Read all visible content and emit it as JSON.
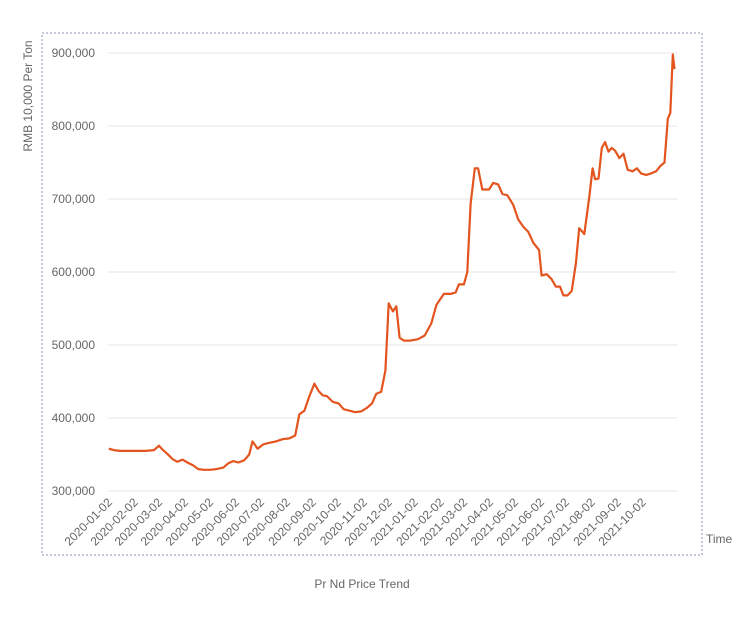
{
  "chart_data": {
    "type": "line",
    "title": "Pr Nd Price Trend",
    "xlabel": "Time",
    "ylabel": "RMB 10,000 Per Ton",
    "ylim": [
      300000,
      910000
    ],
    "yticks": [
      300000,
      400000,
      500000,
      600000,
      700000,
      800000,
      900000
    ],
    "ytick_labels": [
      "300,000",
      "400,000",
      "500,000",
      "600,000",
      "700,000",
      "800,000",
      "900,000"
    ],
    "xlim": [
      "2020-01-01",
      "2021-11-12"
    ],
    "xtick_labels": [
      "2020-01-02",
      "2020-02-02",
      "2020-03-02",
      "2020-04-02",
      "2020-05-02",
      "2020-06-02",
      "2020-07-02",
      "2020-08-02",
      "2020-09-02",
      "2020-10-02",
      "2020-11-02",
      "2020-12-02",
      "2021-01-02",
      "2021-02-02",
      "2021-03-02",
      "2021-04-02",
      "2021-05-02",
      "2021-06-02",
      "2021-07-02",
      "2021-08-02",
      "2021-09-02",
      "2021-10-02"
    ],
    "grid": true,
    "line_color": "#e3541e",
    "series": [
      {
        "name": "",
        "points": [
          [
            "2020-01-02",
            358000
          ],
          [
            "2020-01-08",
            356000
          ],
          [
            "2020-01-15",
            355000
          ],
          [
            "2020-02-01",
            355000
          ],
          [
            "2020-02-15",
            355000
          ],
          [
            "2020-02-25",
            356000
          ],
          [
            "2020-03-02",
            362000
          ],
          [
            "2020-03-06",
            357000
          ],
          [
            "2020-03-12",
            351000
          ],
          [
            "2020-03-18",
            344000
          ],
          [
            "2020-03-24",
            340000
          ],
          [
            "2020-03-30",
            343000
          ],
          [
            "2020-04-05",
            339000
          ],
          [
            "2020-04-12",
            335000
          ],
          [
            "2020-04-18",
            330000
          ],
          [
            "2020-04-25",
            329000
          ],
          [
            "2020-05-02",
            329000
          ],
          [
            "2020-05-10",
            330000
          ],
          [
            "2020-05-18",
            332000
          ],
          [
            "2020-05-24",
            338000
          ],
          [
            "2020-05-30",
            341000
          ],
          [
            "2020-06-05",
            339000
          ],
          [
            "2020-06-12",
            342000
          ],
          [
            "2020-06-18",
            350000
          ],
          [
            "2020-06-22",
            368000
          ],
          [
            "2020-06-28",
            358000
          ],
          [
            "2020-07-05",
            364000
          ],
          [
            "2020-07-12",
            366000
          ],
          [
            "2020-07-20",
            368000
          ],
          [
            "2020-07-28",
            371000
          ],
          [
            "2020-08-05",
            372000
          ],
          [
            "2020-08-12",
            376000
          ],
          [
            "2020-08-17",
            405000
          ],
          [
            "2020-08-23",
            410000
          ],
          [
            "2020-08-29",
            430000
          ],
          [
            "2020-09-04",
            447000
          ],
          [
            "2020-09-09",
            437000
          ],
          [
            "2020-09-14",
            431000
          ],
          [
            "2020-09-19",
            430000
          ],
          [
            "2020-09-26",
            422000
          ],
          [
            "2020-10-03",
            420000
          ],
          [
            "2020-10-09",
            412000
          ],
          [
            "2020-10-16",
            410000
          ],
          [
            "2020-10-23",
            408000
          ],
          [
            "2020-10-30",
            409000
          ],
          [
            "2020-11-06",
            414000
          ],
          [
            "2020-11-12",
            420000
          ],
          [
            "2020-11-17",
            433000
          ],
          [
            "2020-11-23",
            436000
          ],
          [
            "2020-11-28",
            465000
          ],
          [
            "2020-12-02",
            557000
          ],
          [
            "2020-12-07",
            546000
          ],
          [
            "2020-12-11",
            553000
          ],
          [
            "2020-12-15",
            510000
          ],
          [
            "2020-12-20",
            506000
          ],
          [
            "2020-12-28",
            506000
          ],
          [
            "2021-01-06",
            508000
          ],
          [
            "2021-01-14",
            513000
          ],
          [
            "2021-01-22",
            530000
          ],
          [
            "2021-01-28",
            555000
          ],
          [
            "2021-02-06",
            570000
          ],
          [
            "2021-02-14",
            570000
          ],
          [
            "2021-02-20",
            572000
          ],
          [
            "2021-02-24",
            583000
          ],
          [
            "2021-03-02",
            583000
          ],
          [
            "2021-03-06",
            600000
          ],
          [
            "2021-03-10",
            693000
          ],
          [
            "2021-03-15",
            742000
          ],
          [
            "2021-03-19",
            742000
          ],
          [
            "2021-03-24",
            713000
          ],
          [
            "2021-04-01",
            713000
          ],
          [
            "2021-04-06",
            722000
          ],
          [
            "2021-04-12",
            720000
          ],
          [
            "2021-04-17",
            707000
          ],
          [
            "2021-04-23",
            705000
          ],
          [
            "2021-04-30",
            692000
          ],
          [
            "2021-05-06",
            672000
          ],
          [
            "2021-05-12",
            662000
          ],
          [
            "2021-05-18",
            655000
          ],
          [
            "2021-05-24",
            640000
          ],
          [
            "2021-05-31",
            630000
          ],
          [
            "2021-06-03",
            595000
          ],
          [
            "2021-06-09",
            597000
          ],
          [
            "2021-06-15",
            590000
          ],
          [
            "2021-06-20",
            580000
          ],
          [
            "2021-06-25",
            580000
          ],
          [
            "2021-06-29",
            568000
          ],
          [
            "2021-07-04",
            568000
          ],
          [
            "2021-07-09",
            574000
          ],
          [
            "2021-07-14",
            612000
          ],
          [
            "2021-07-18",
            660000
          ],
          [
            "2021-07-24",
            652000
          ],
          [
            "2021-07-30",
            703000
          ],
          [
            "2021-08-03",
            742000
          ],
          [
            "2021-08-06",
            727000
          ],
          [
            "2021-08-10",
            728000
          ],
          [
            "2021-08-14",
            770000
          ],
          [
            "2021-08-18",
            778000
          ],
          [
            "2021-08-22",
            765000
          ],
          [
            "2021-08-26",
            770000
          ],
          [
            "2021-08-30",
            766000
          ],
          [
            "2021-09-04",
            756000
          ],
          [
            "2021-09-09",
            762000
          ],
          [
            "2021-09-14",
            740000
          ],
          [
            "2021-09-20",
            738000
          ],
          [
            "2021-09-25",
            742000
          ],
          [
            "2021-09-30",
            735000
          ],
          [
            "2021-10-06",
            733000
          ],
          [
            "2021-10-12",
            735000
          ],
          [
            "2021-10-18",
            738000
          ],
          [
            "2021-10-23",
            745000
          ],
          [
            "2021-10-28",
            750000
          ],
          [
            "2021-11-01",
            810000
          ],
          [
            "2021-11-04",
            818000
          ],
          [
            "2021-11-07",
            898000
          ],
          [
            "2021-11-09",
            878000
          ]
        ]
      }
    ]
  }
}
